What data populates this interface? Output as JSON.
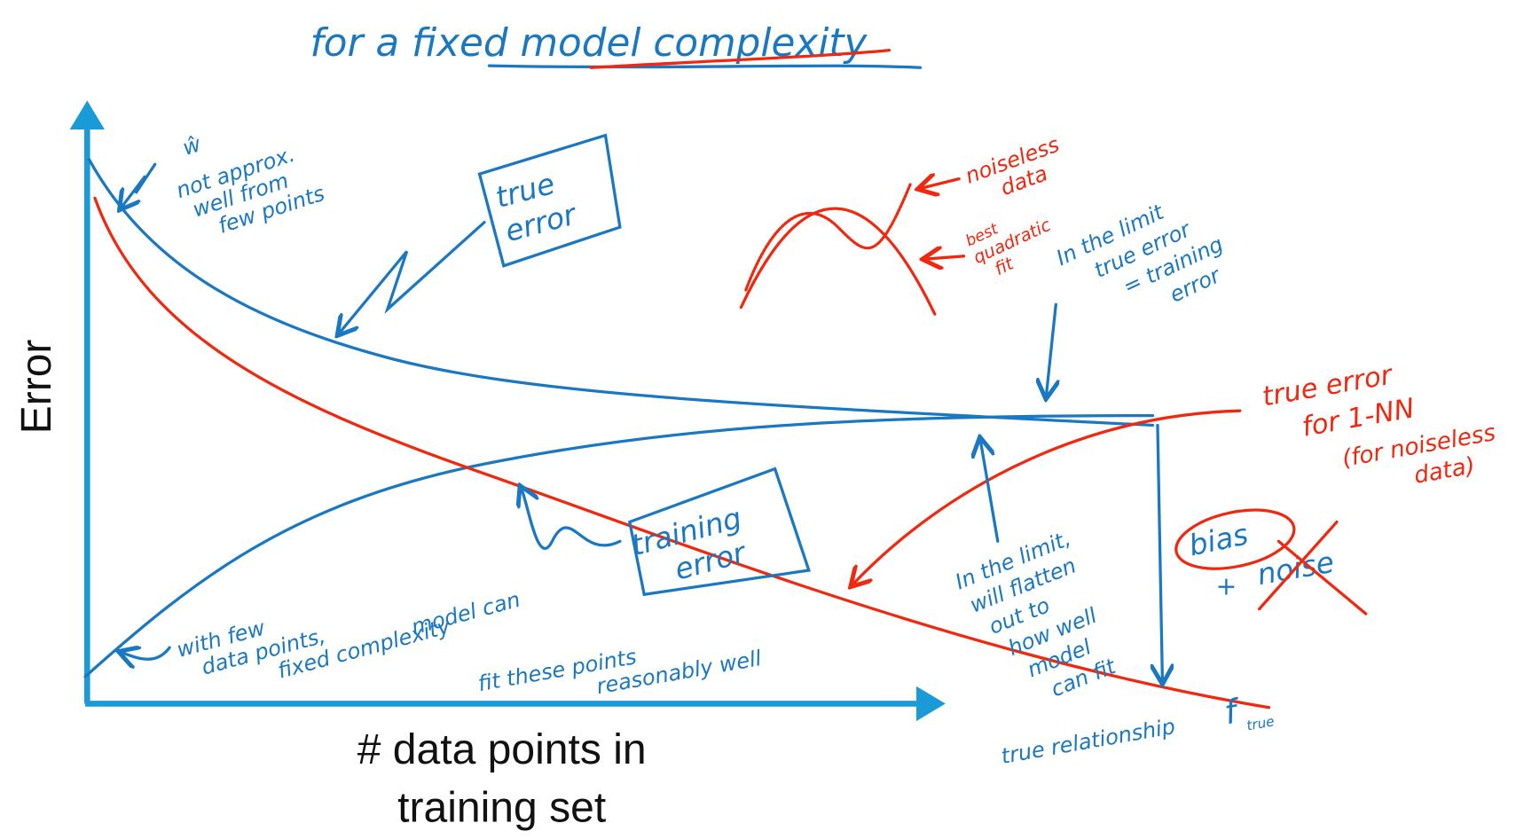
{
  "title": "for a fixed model complexity",
  "y_axis_label": "Error",
  "x_axis_label": [
    "# data points in",
    "training set"
  ],
  "annotations": {
    "w_hat": {
      "symbol": "ŵ",
      "lines": [
        "not approx.",
        "well from",
        "few points"
      ]
    },
    "true_error_box": [
      "true",
      "error"
    ],
    "training_error_box": [
      "training",
      "error"
    ],
    "noiseless_data": [
      "noiseless",
      "data"
    ],
    "best_quadratic_fit": [
      "best",
      "quadratic",
      "fit"
    ],
    "limit_equal": [
      "In the limit",
      "true error",
      "= training",
      "error"
    ],
    "true_error_1nn": [
      "true error",
      "for 1-NN",
      "(for noiseless",
      "data)"
    ],
    "bias": "bias",
    "noise": [
      "+",
      "noise"
    ],
    "flatten": {
      "lines": [
        "In the limit,",
        "will flatten",
        "out to",
        "how well",
        "model",
        "can fit",
        "true relationship"
      ],
      "f_symbol": "f",
      "f_subscript": "true"
    },
    "few_points": [
      "with few",
      "data points,",
      "fixed complexity",
      "model can",
      "fit these points",
      "reasonably well"
    ]
  }
}
